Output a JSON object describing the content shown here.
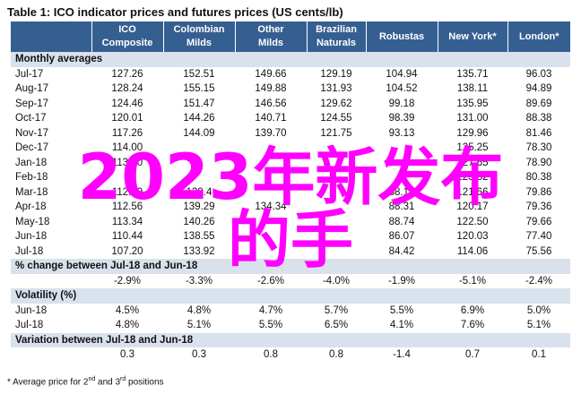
{
  "title": "Table 1:  ICO indicator prices and futures prices (US cents/lb)",
  "columns": [
    {
      "line1": "",
      "line2": ""
    },
    {
      "line1": "ICO",
      "line2": "Composite"
    },
    {
      "line1": "Colombian",
      "line2": "Milds"
    },
    {
      "line1": "Other",
      "line2": "Milds"
    },
    {
      "line1": "Brazilian",
      "line2": "Naturals"
    },
    {
      "line1": "Robustas",
      "line2": ""
    },
    {
      "line1": "New York*",
      "line2": ""
    },
    {
      "line1": "London*",
      "line2": ""
    }
  ],
  "sections": {
    "monthly": "Monthly averages",
    "change": "% change between Jul-18 and Jun-18",
    "volatility": "Volatility (%)",
    "variation": "Variation between Jul-18 and Jun-18"
  },
  "monthly_rows": [
    {
      "label": "Jul-17",
      "values": [
        "127.26",
        "152.51",
        "149.66",
        "129.19",
        "104.94",
        "135.71",
        "96.03"
      ]
    },
    {
      "label": "Aug-17",
      "values": [
        "128.24",
        "155.15",
        "149.88",
        "131.93",
        "104.52",
        "138.11",
        "94.89"
      ]
    },
    {
      "label": "Sep-17",
      "values": [
        "124.46",
        "151.47",
        "146.56",
        "129.62",
        "99.18",
        "135.95",
        "89.69"
      ]
    },
    {
      "label": "Oct-17",
      "values": [
        "120.01",
        "144.26",
        "140.71",
        "124.55",
        "98.39",
        "131.00",
        "88.38"
      ]
    },
    {
      "label": "Nov-17",
      "values": [
        "117.26",
        "144.09",
        "139.70",
        "121.75",
        "93.13",
        "129.96",
        "81.46"
      ]
    },
    {
      "label": "Dec-17",
      "values": [
        "114.00",
        "",
        "",
        "",
        "",
        "125.25",
        "78.30"
      ]
    },
    {
      "label": "Jan-18",
      "values": [
        "113.60",
        "",
        "",
        "",
        "",
        "127.65",
        "78.90"
      ]
    },
    {
      "label": "Feb-18",
      "values": [
        "",
        "",
        "",
        "",
        "",
        "123.82",
        "80.38"
      ]
    },
    {
      "label": "Mar-18",
      "values": [
        "112.99",
        "139.4",
        "",
        "",
        "88.18",
        "121.66",
        "79.86"
      ]
    },
    {
      "label": "Apr-18",
      "values": [
        "112.56",
        "139.29",
        "134.34",
        "",
        "88.31",
        "120.17",
        "79.36"
      ]
    },
    {
      "label": "May-18",
      "values": [
        "113.34",
        "140.26",
        "",
        "",
        "88.74",
        "122.50",
        "79.66"
      ]
    },
    {
      "label": "Jun-18",
      "values": [
        "110.44",
        "138.55",
        "",
        "",
        "86.07",
        "120.03",
        "77.40"
      ]
    },
    {
      "label": "Jul-18",
      "values": [
        "107.20",
        "133.92",
        "",
        "",
        "84.42",
        "114.06",
        "75.56"
      ]
    }
  ],
  "change_row": [
    "-2.9%",
    "-3.3%",
    "-2.6%",
    "-4.0%",
    "-1.9%",
    "-5.1%",
    "-2.4%"
  ],
  "volatility_rows": [
    {
      "label": "Jun-18",
      "values": [
        "4.5%",
        "4.8%",
        "4.7%",
        "5.7%",
        "5.5%",
        "6.9%",
        "5.0%"
      ]
    },
    {
      "label": "Jul-18",
      "values": [
        "4.8%",
        "5.1%",
        "5.5%",
        "6.5%",
        "4.1%",
        "7.6%",
        "5.1%"
      ]
    }
  ],
  "variation_row": [
    "0.3",
    "0.3",
    "0.8",
    "0.8",
    "-1.4",
    "0.7",
    "0.1"
  ],
  "footnote": {
    "pre": "* Average price for 2",
    "sup1": "nd",
    "mid": " and 3",
    "sup2": "rd",
    "post": " positions"
  },
  "watermark": {
    "line1": "2023年新发布",
    "line2": "的手",
    "color": "#ff00ff"
  }
}
